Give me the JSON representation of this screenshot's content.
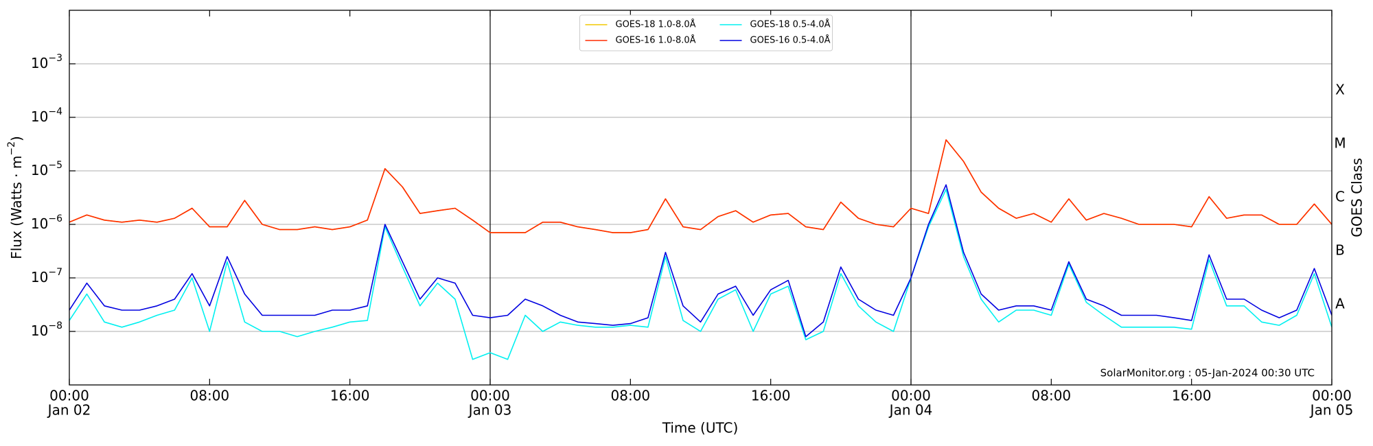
{
  "chart_data": {
    "type": "line",
    "ylabel": "Flux (Watts · m",
    "ylabel_exponent": "−2",
    "ylabel_end": ")",
    "xlabel": "Time (UTC)",
    "y2label": "GOES Class",
    "annotation": "SolarMonitor.org : 05-Jan-2024 00:30 UTC",
    "yscale": "log",
    "grid": true,
    "legend": "upper center",
    "ylim": [
      1e-09,
      0.01
    ],
    "yticks": [
      {
        "value": 1e-08,
        "label": "10",
        "exponent": "−8"
      },
      {
        "value": 1e-07,
        "label": "10",
        "exponent": "−7"
      },
      {
        "value": 1e-06,
        "label": "10",
        "exponent": "−6"
      },
      {
        "value": 1e-05,
        "label": "10",
        "exponent": "−5"
      },
      {
        "value": 0.0001,
        "label": "10",
        "exponent": "−4"
      },
      {
        "value": 0.001,
        "label": "10",
        "exponent": "−3"
      }
    ],
    "y2lim": [
      1e-09,
      0.01
    ],
    "y2ticks": [
      {
        "value": 3.16e-08,
        "label": "A"
      },
      {
        "value": 3.16e-07,
        "label": "B"
      },
      {
        "value": 3.16e-06,
        "label": "C"
      },
      {
        "value": 3.16e-05,
        "label": "M"
      },
      {
        "value": 0.000316,
        "label": "X"
      }
    ],
    "xlim": [
      "Jan 02 00:00",
      "Jan 05 00:00"
    ],
    "xticks": [
      {
        "value": "Jan 02 00:00",
        "label": "00:00",
        "sublabel": "Jan 02"
      },
      {
        "value": "Jan 02 08:00",
        "label": "08:00"
      },
      {
        "value": "Jan 02 16:00",
        "label": "16:00"
      },
      {
        "value": "Jan 03 00:00",
        "label": "00:00",
        "sublabel": "Jan 03"
      },
      {
        "value": "Jan 03 08:00",
        "label": "08:00"
      },
      {
        "value": "Jan 03 16:00",
        "label": "16:00"
      },
      {
        "value": "Jan 04 00:00",
        "label": "00:00",
        "sublabel": "Jan 04"
      },
      {
        "value": "Jan 04 08:00",
        "label": "08:00"
      },
      {
        "value": "Jan 04 16:00",
        "label": "16:00"
      },
      {
        "value": "Jan 05 00:00",
        "label": "00:00",
        "sublabel": "Jan 05"
      }
    ],
    "day_lines": [
      "Jan 03 00:00",
      "Jan 04 00:00"
    ],
    "x": [
      "Jan 02 00:00",
      "Jan 02 01:00",
      "Jan 02 02:00",
      "Jan 02 03:00",
      "Jan 02 04:00",
      "Jan 02 05:00",
      "Jan 02 06:00",
      "Jan 02 07:00",
      "Jan 02 08:00",
      "Jan 02 09:00",
      "Jan 02 10:00",
      "Jan 02 11:00",
      "Jan 02 12:00",
      "Jan 02 13:00",
      "Jan 02 14:00",
      "Jan 02 15:00",
      "Jan 02 16:00",
      "Jan 02 17:00",
      "Jan 02 18:00",
      "Jan 02 19:00",
      "Jan 02 20:00",
      "Jan 02 21:00",
      "Jan 02 22:00",
      "Jan 02 23:00",
      "Jan 03 00:00",
      "Jan 03 01:00",
      "Jan 03 02:00",
      "Jan 03 03:00",
      "Jan 03 04:00",
      "Jan 03 05:00",
      "Jan 03 06:00",
      "Jan 03 07:00",
      "Jan 03 08:00",
      "Jan 03 09:00",
      "Jan 03 10:00",
      "Jan 03 11:00",
      "Jan 03 12:00",
      "Jan 03 13:00",
      "Jan 03 14:00",
      "Jan 03 15:00",
      "Jan 03 16:00",
      "Jan 03 17:00",
      "Jan 03 18:00",
      "Jan 03 19:00",
      "Jan 03 20:00",
      "Jan 03 21:00",
      "Jan 03 22:00",
      "Jan 03 23:00",
      "Jan 04 00:00",
      "Jan 04 01:00",
      "Jan 04 02:00",
      "Jan 04 03:00",
      "Jan 04 04:00",
      "Jan 04 05:00",
      "Jan 04 06:00",
      "Jan 04 07:00",
      "Jan 04 08:00",
      "Jan 04 09:00",
      "Jan 04 10:00",
      "Jan 04 11:00",
      "Jan 04 12:00",
      "Jan 04 13:00",
      "Jan 04 14:00",
      "Jan 04 15:00",
      "Jan 04 16:00",
      "Jan 04 17:00",
      "Jan 04 18:00",
      "Jan 04 19:00",
      "Jan 04 20:00",
      "Jan 04 21:00",
      "Jan 04 22:00",
      "Jan 04 23:00",
      "Jan 05 00:00"
    ],
    "series": [
      {
        "name": "GOES-18 1.0-8.0Å",
        "color": "#f2c800",
        "values": [
          1.1e-06,
          1.5e-06,
          1.2e-06,
          1.1e-06,
          1.2e-06,
          1.1e-06,
          1.3e-06,
          2e-06,
          9e-07,
          9e-07,
          2.8e-06,
          1e-06,
          8e-07,
          8e-07,
          9e-07,
          8e-07,
          9e-07,
          1.2e-06,
          1.1e-05,
          5e-06,
          1.6e-06,
          1.8e-06,
          2e-06,
          1.2e-06,
          7e-07,
          7e-07,
          7e-07,
          1.1e-06,
          1.1e-06,
          9e-07,
          8e-07,
          7e-07,
          7e-07,
          8e-07,
          3e-06,
          9e-07,
          8e-07,
          1.4e-06,
          1.8e-06,
          1.1e-06,
          1.5e-06,
          1.6e-06,
          9e-07,
          8e-07,
          2.6e-06,
          1.3e-06,
          1e-06,
          9e-07,
          2e-06,
          1.6e-06,
          3.8e-05,
          1.5e-05,
          4e-06,
          2e-06,
          1.3e-06,
          1.6e-06,
          1.1e-06,
          3e-06,
          1.2e-06,
          1.6e-06,
          1.3e-06,
          1e-06,
          1e-06,
          1e-06,
          9e-07,
          3.3e-06,
          1.3e-06,
          1.5e-06,
          1.5e-06,
          1e-06,
          1e-06,
          2.4e-06,
          1e-06
        ]
      },
      {
        "name": "GOES-16 1.0-8.0Å",
        "color": "#ff2a00",
        "values": [
          1.1e-06,
          1.5e-06,
          1.2e-06,
          1.1e-06,
          1.2e-06,
          1.1e-06,
          1.3e-06,
          2e-06,
          9e-07,
          9e-07,
          2.8e-06,
          1e-06,
          8e-07,
          8e-07,
          9e-07,
          8e-07,
          9e-07,
          1.2e-06,
          1.1e-05,
          5e-06,
          1.6e-06,
          1.8e-06,
          2e-06,
          1.2e-06,
          7e-07,
          7e-07,
          7e-07,
          1.1e-06,
          1.1e-06,
          9e-07,
          8e-07,
          7e-07,
          7e-07,
          8e-07,
          3e-06,
          9e-07,
          8e-07,
          1.4e-06,
          1.8e-06,
          1.1e-06,
          1.5e-06,
          1.6e-06,
          9e-07,
          8e-07,
          2.6e-06,
          1.3e-06,
          1e-06,
          9e-07,
          2e-06,
          1.6e-06,
          3.8e-05,
          1.5e-05,
          4e-06,
          2e-06,
          1.3e-06,
          1.6e-06,
          1.1e-06,
          3e-06,
          1.2e-06,
          1.6e-06,
          1.3e-06,
          1e-06,
          1e-06,
          1e-06,
          9e-07,
          3.3e-06,
          1.3e-06,
          1.5e-06,
          1.5e-06,
          1e-06,
          1e-06,
          2.4e-06,
          1e-06
        ]
      },
      {
        "name": "GOES-18 0.5-4.0Å",
        "color": "#00f0f0",
        "values": [
          1.6e-08,
          5e-08,
          1.5e-08,
          1.2e-08,
          1.5e-08,
          2e-08,
          2.5e-08,
          1e-07,
          1e-08,
          2e-07,
          1.5e-08,
          1e-08,
          1e-08,
          8e-09,
          1e-08,
          1.2e-08,
          1.5e-08,
          1.6e-08,
          9e-07,
          1.6e-07,
          3e-08,
          8e-08,
          4e-08,
          3e-09,
          4e-09,
          3e-09,
          2e-08,
          1e-08,
          1.5e-08,
          1.3e-08,
          1.2e-08,
          1.2e-08,
          1.3e-08,
          1.2e-08,
          2.5e-07,
          1.6e-08,
          1e-08,
          4e-08,
          6e-08,
          1e-08,
          5e-08,
          7e-08,
          7e-09,
          1e-08,
          1.2e-07,
          3e-08,
          1.5e-08,
          1e-08,
          1e-07,
          9e-07,
          4.5e-06,
          2.5e-07,
          4e-08,
          1.5e-08,
          2.5e-08,
          2.5e-08,
          2e-08,
          1.8e-07,
          3.5e-08,
          2e-08,
          1.2e-08,
          1.2e-08,
          1.2e-08,
          1.2e-08,
          1.1e-08,
          2.2e-07,
          3e-08,
          3e-08,
          1.5e-08,
          1.3e-08,
          2e-08,
          1.2e-07,
          1.2e-08
        ]
      },
      {
        "name": "GOES-16 0.5-4.0Å",
        "color": "#0000e0",
        "values": [
          2.5e-08,
          8e-08,
          3e-08,
          2.5e-08,
          2.5e-08,
          3e-08,
          4e-08,
          1.2e-07,
          3e-08,
          2.5e-07,
          5e-08,
          2e-08,
          2e-08,
          2e-08,
          2e-08,
          2.5e-08,
          2.5e-08,
          3e-08,
          1e-06,
          2e-07,
          4e-08,
          1e-07,
          8e-08,
          2e-08,
          1.8e-08,
          2e-08,
          4e-08,
          3e-08,
          2e-08,
          1.5e-08,
          1.4e-08,
          1.3e-08,
          1.4e-08,
          1.8e-08,
          3e-07,
          3e-08,
          1.5e-08,
          5e-08,
          7e-08,
          2e-08,
          6e-08,
          9e-08,
          8e-09,
          1.5e-08,
          1.6e-07,
          4e-08,
          2.5e-08,
          2e-08,
          1e-07,
          1e-06,
          5.5e-06,
          3e-07,
          5e-08,
          2.5e-08,
          3e-08,
          3e-08,
          2.5e-08,
          2e-07,
          4e-08,
          3e-08,
          2e-08,
          2e-08,
          2e-08,
          1.8e-08,
          1.6e-08,
          2.7e-07,
          4e-08,
          4e-08,
          2.5e-08,
          1.8e-08,
          2.5e-08,
          1.5e-07,
          2e-08
        ]
      }
    ]
  }
}
